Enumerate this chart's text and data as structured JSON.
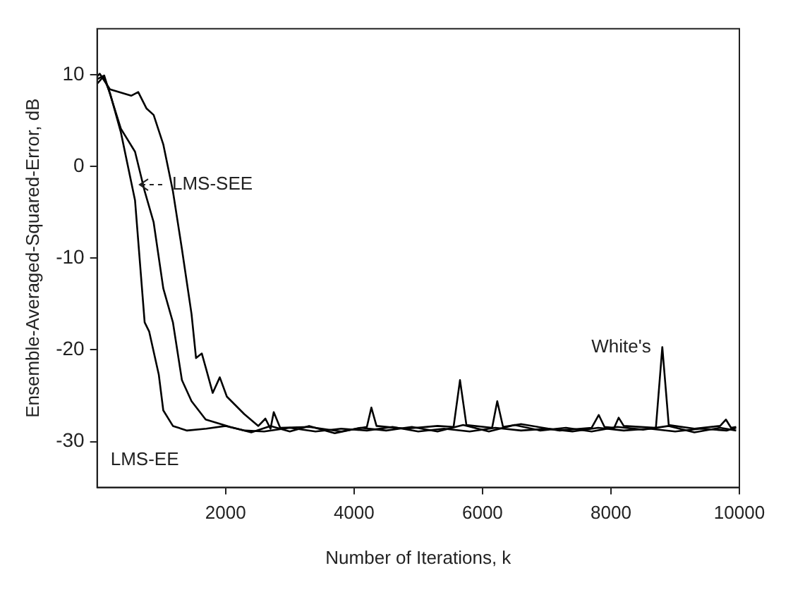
{
  "chart_data": {
    "type": "line",
    "xlabel": "Number of Iterations, k",
    "ylabel": "Ensemble-Averaged-Squared-Error, dB",
    "xlim": [
      0,
      10000
    ],
    "xticks": [
      2000,
      4000,
      6000,
      8000,
      10000
    ],
    "ylim": [
      -35,
      15
    ],
    "yticks": [
      -30,
      -20,
      -10,
      0,
      10
    ],
    "grid": false,
    "legend": false,
    "marker": "none",
    "line_style": "solid",
    "series": [
      {
        "color": "#000000",
        "x": [
          0,
          100,
          200,
          370,
          590,
          740,
          810,
          960,
          1030,
          1180,
          1400,
          1700,
          2000,
          2300,
          2600,
          3000,
          3400,
          3800,
          4200,
          4600,
          5000,
          5400,
          5800,
          6200,
          6600,
          7000,
          7400,
          7800,
          8200,
          8600,
          9000,
          9400,
          9800,
          9950
        ],
        "values": [
          9,
          9.8,
          8,
          3.7,
          -3.7,
          -17,
          -18,
          -22.7,
          -26.6,
          -28.3,
          -28.8,
          -28.6,
          -28.3,
          -28.8,
          -28.9,
          -28.5,
          -28.9,
          -28.6,
          -28.8,
          -28.4,
          -28.9,
          -28.6,
          -28.9,
          -28.5,
          -28.8,
          -28.6,
          -28.9,
          -28.5,
          -28.8,
          -28.6,
          -28.9,
          -28.6,
          -28.8,
          -28.5
        ]
      },
      {
        "color": "#000000",
        "x": [
          0,
          110,
          370,
          590,
          740,
          880,
          1030,
          1180,
          1320,
          1470,
          1690,
          2070,
          2400,
          2700,
          3000,
          3300,
          3700,
          4100,
          4500,
          4900,
          5300,
          5700,
          6100,
          6500,
          6900,
          7300,
          7700,
          8100,
          8500,
          8900,
          9300,
          9700,
          9950
        ],
        "values": [
          9.5,
          9.9,
          4.1,
          1.6,
          -2.7,
          -6.1,
          -13.3,
          -17,
          -23.3,
          -25.6,
          -27.6,
          -28.4,
          -29,
          -28.3,
          -28.9,
          -28.3,
          -29.1,
          -28.5,
          -28.8,
          -28.4,
          -28.9,
          -28.2,
          -28.9,
          -28.2,
          -28.8,
          -28.5,
          -28.9,
          -28.4,
          -28.7,
          -28.3,
          -29,
          -28.5,
          -28.8
        ]
      },
      {
        "color": "#000000",
        "x": [
          0,
          40,
          200,
          530,
          640,
          770,
          880,
          1030,
          1180,
          1320,
          1470,
          1540,
          1630,
          1690,
          1800,
          1910,
          2020,
          2290,
          2510,
          2620,
          2700,
          2750,
          2850,
          3300,
          3800,
          4200,
          4270,
          4350,
          4800,
          5300,
          5550,
          5650,
          5750,
          6150,
          6230,
          6320,
          6600,
          7200,
          7700,
          7810,
          7900,
          8050,
          8120,
          8200,
          8700,
          8800,
          8900,
          9300,
          9700,
          9790,
          9870,
          9950
        ],
        "values": [
          9.8,
          10.1,
          8.4,
          7.7,
          8.1,
          6.3,
          5.6,
          2.4,
          -2.7,
          -9,
          -16.1,
          -20.9,
          -20.4,
          -21.9,
          -24.7,
          -23,
          -25.1,
          -27,
          -28.3,
          -27.5,
          -28.6,
          -26.8,
          -28.5,
          -28.4,
          -28.9,
          -28.4,
          -26.3,
          -28.3,
          -28.6,
          -28.3,
          -28.4,
          -23.3,
          -28.2,
          -28.5,
          -25.6,
          -28.4,
          -28.1,
          -28.8,
          -28.5,
          -27.1,
          -28.4,
          -28.5,
          -27.4,
          -28.3,
          -28.5,
          -19.7,
          -28.2,
          -28.6,
          -28.3,
          -27.6,
          -28.5,
          -28.4
        ]
      }
    ],
    "annotations": [
      {
        "text": "LMS-SEE",
        "x": 640,
        "y": -2
      },
      {
        "text": "White's",
        "x": 8800,
        "y": -19.7
      },
      {
        "text": "LMS-EE",
        "x": 1180,
        "y": -28.3
      }
    ]
  }
}
